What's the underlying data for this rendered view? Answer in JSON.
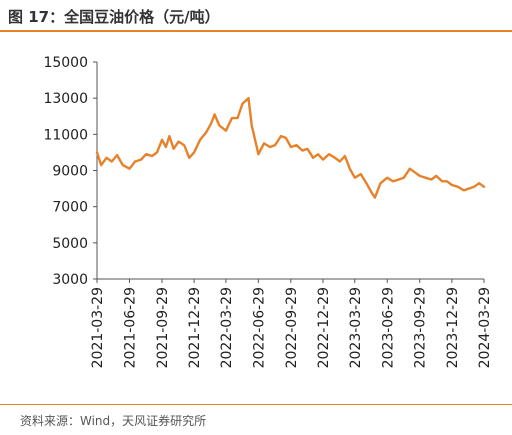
{
  "header": {
    "title": "图 17：全国豆油价格（元/吨）"
  },
  "footer": {
    "source": "资料来源：Wind，天风证券研究所"
  },
  "colors": {
    "accent": "#e8822a",
    "series": "#e8822a",
    "axis": "#555555"
  },
  "chart_data": {
    "type": "line",
    "title": "图 17：全国豆油价格（元/吨）",
    "xlabel": "",
    "ylabel": "",
    "ylim": [
      3000,
      15000
    ],
    "yticks": [
      3000,
      5000,
      7000,
      9000,
      11000,
      13000,
      15000
    ],
    "ytick_labels": [
      "3000",
      "5000",
      "7000",
      "9000",
      "11000",
      "13000",
      "15000"
    ],
    "xticks": [
      "2021-03-29",
      "2021-06-29",
      "2021-09-29",
      "2021-12-29",
      "2022-03-29",
      "2022-06-29",
      "2022-09-29",
      "2022-12-29",
      "2023-03-29",
      "2023-06-29",
      "2023-09-29",
      "2023-12-29",
      "2024-03-29"
    ],
    "grid": false,
    "legend": "none",
    "series": [
      {
        "color": "#e8822a",
        "x": [
          "2021-03-29",
          "2021-04-10",
          "2021-04-25",
          "2021-05-10",
          "2021-05-25",
          "2021-06-10",
          "2021-06-29",
          "2021-07-15",
          "2021-08-01",
          "2021-08-15",
          "2021-09-01",
          "2021-09-15",
          "2021-09-29",
          "2021-10-10",
          "2021-10-20",
          "2021-11-01",
          "2021-11-15",
          "2021-12-01",
          "2021-12-15",
          "2021-12-29",
          "2022-01-15",
          "2022-02-01",
          "2022-02-15",
          "2022-02-25",
          "2022-03-10",
          "2022-03-29",
          "2022-04-15",
          "2022-05-01",
          "2022-05-15",
          "2022-06-01",
          "2022-06-10",
          "2022-06-29",
          "2022-07-15",
          "2022-08-01",
          "2022-08-15",
          "2022-09-01",
          "2022-09-15",
          "2022-09-29",
          "2022-10-15",
          "2022-11-01",
          "2022-11-15",
          "2022-12-01",
          "2022-12-15",
          "2022-12-29",
          "2023-01-15",
          "2023-02-01",
          "2023-02-15",
          "2023-03-01",
          "2023-03-15",
          "2023-03-29",
          "2023-04-15",
          "2023-05-01",
          "2023-05-15",
          "2023-05-25",
          "2023-06-10",
          "2023-06-29",
          "2023-07-15",
          "2023-08-01",
          "2023-08-15",
          "2023-09-01",
          "2023-09-15",
          "2023-09-29",
          "2023-10-15",
          "2023-11-01",
          "2023-11-15",
          "2023-12-01",
          "2023-12-15",
          "2023-12-29",
          "2024-01-15",
          "2024-02-01",
          "2024-02-15",
          "2024-03-01",
          "2024-03-15",
          "2024-03-29"
        ],
        "y": [
          10000,
          9300,
          9700,
          9500,
          9850,
          9300,
          9100,
          9500,
          9600,
          9900,
          9800,
          10000,
          10700,
          10300,
          10900,
          10200,
          10600,
          10400,
          9700,
          10000,
          10700,
          11100,
          11600,
          12100,
          11500,
          11200,
          11900,
          11900,
          12700,
          13000,
          11500,
          9900,
          10500,
          10300,
          10400,
          10900,
          10800,
          10300,
          10400,
          10100,
          10200,
          9700,
          9900,
          9600,
          9900,
          9700,
          9500,
          9800,
          9100,
          8600,
          8800,
          8300,
          7800,
          7500,
          8300,
          8600,
          8400,
          8500,
          8600,
          9100,
          8900,
          8700,
          8600,
          8500,
          8700,
          8400,
          8400,
          8200,
          8100,
          7900,
          8000,
          8100,
          8300,
          8100
        ]
      }
    ]
  }
}
